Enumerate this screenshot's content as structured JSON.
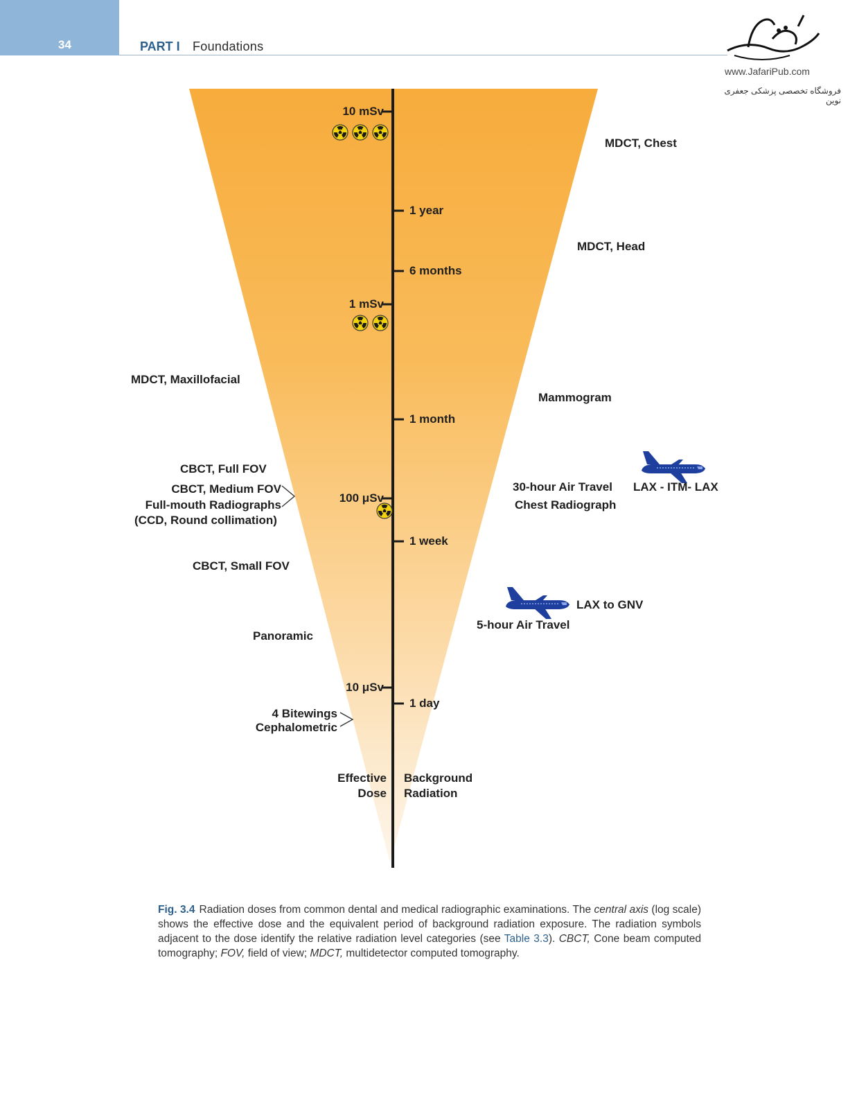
{
  "header": {
    "page_number": "34",
    "part_label": "PART I",
    "part_title": "Foundations",
    "publisher_url": "www.JafariPub.com",
    "publisher_name": "فروشگاه تخصصی پزشکی جعفری نوین"
  },
  "figure": {
    "axis_ticks_left": [
      {
        "label": "10 mSv",
        "symbols": 3
      },
      {
        "label": "1 mSv",
        "symbols": 2
      },
      {
        "label": "100 μSv",
        "symbols": 1
      },
      {
        "label": "10 μSv",
        "symbols": 0
      }
    ],
    "axis_ticks_right": [
      "1 year",
      "6 months",
      "1 month",
      "1 week",
      "1 day"
    ],
    "axis_titles": {
      "left": [
        "Effective",
        "Dose"
      ],
      "right": [
        "Background",
        "Radiation"
      ]
    },
    "dental_exams": {
      "mdct_maxillofacial": "MDCT, Maxillofacial",
      "cbct_full": "CBCT, Full FOV",
      "cbct_medium": "CBCT, Medium FOV",
      "full_mouth": "Full-mouth Radiographs",
      "full_mouth_note": "(CCD, Round collimation)",
      "cbct_small": "CBCT, Small FOV",
      "panoramic": "Panoramic",
      "bitewings": "4 Bitewings",
      "cephalometric": "Cephalometric"
    },
    "medical_exams": {
      "mdct_chest": "MDCT, Chest",
      "mdct_head": "MDCT, Head",
      "mammogram": "Mammogram",
      "air_30h": "30-hour Air Travel",
      "chest_radiograph": "Chest Radiograph",
      "air_5h": "5-hour Air Travel"
    },
    "flights": {
      "long": "LAX - ITM- LAX",
      "short": "LAX to GNV"
    },
    "colors": {
      "cone_top": "#f7ac3c",
      "cone_bottom": "#fdf6ec",
      "axis": "#1a1a1a",
      "plane": "#1f3f9e",
      "symbol": "#f2d20a"
    }
  },
  "caption": {
    "fig_label": "Fig. 3.4",
    "text_1": "Radiation doses from common dental and medical radiographic examinations. The ",
    "central_axis": "central axis",
    "text_2": " (log scale) shows the effective dose and the equivalent period of background radiation exposure. The radiation symbols adjacent to the dose identify the relative radiation level categories (see ",
    "table_ref": "Table 3.3",
    "text_3": "). ",
    "cbct_abbr": "CBCT,",
    "text_4": " Cone beam computed tomography; ",
    "fov_abbr": "FOV,",
    "text_5": " field of view; ",
    "mdct_abbr": "MDCT,",
    "text_6": " multidetector computed tomography."
  }
}
